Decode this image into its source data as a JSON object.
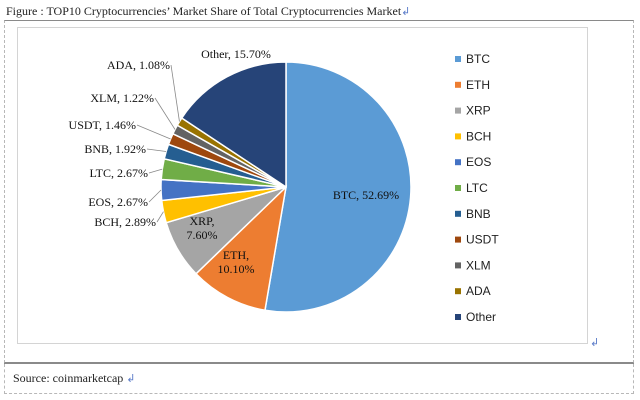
{
  "caption": {
    "text": "Figure : TOP10 Cryptocurrencies’ Market Share of Total Cryptocurrencies Market",
    "mark": "↲"
  },
  "source": {
    "text": "Source: coinmarketcap",
    "mark": "↲"
  },
  "chart_mark": "↲",
  "chart_data": {
    "type": "pie",
    "title": "",
    "unit": "%",
    "categories": [
      "BTC",
      "ETH",
      "XRP",
      "BCH",
      "EOS",
      "LTC",
      "BNB",
      "USDT",
      "XLM",
      "ADA",
      "Other"
    ],
    "values": [
      52.69,
      10.1,
      7.6,
      2.89,
      2.67,
      2.67,
      1.92,
      1.46,
      1.22,
      1.08,
      15.7
    ],
    "colors": [
      "#5b9bd5",
      "#ed7d31",
      "#a5a5a5",
      "#ffc000",
      "#4472c4",
      "#70ad47",
      "#255e91",
      "#9e480e",
      "#636363",
      "#997300",
      "#264478"
    ],
    "data_labels": [
      "BTC, 52.69%",
      "ETH,\n10.10%",
      "XRP,\n7.60%",
      "BCH, 2.89%",
      "EOS, 2.67%",
      "LTC, 2.67%",
      "BNB, 1.92%",
      "USDT, 1.46%",
      "XLM, 1.22%",
      "ADA, 1.08%",
      "Other, 15.70%"
    ],
    "legend": {
      "position": "right",
      "entries": [
        "BTC",
        "ETH",
        "XRP",
        "BCH",
        "EOS",
        "LTC",
        "BNB",
        "USDT",
        "XLM",
        "ADA",
        "Other"
      ]
    }
  }
}
